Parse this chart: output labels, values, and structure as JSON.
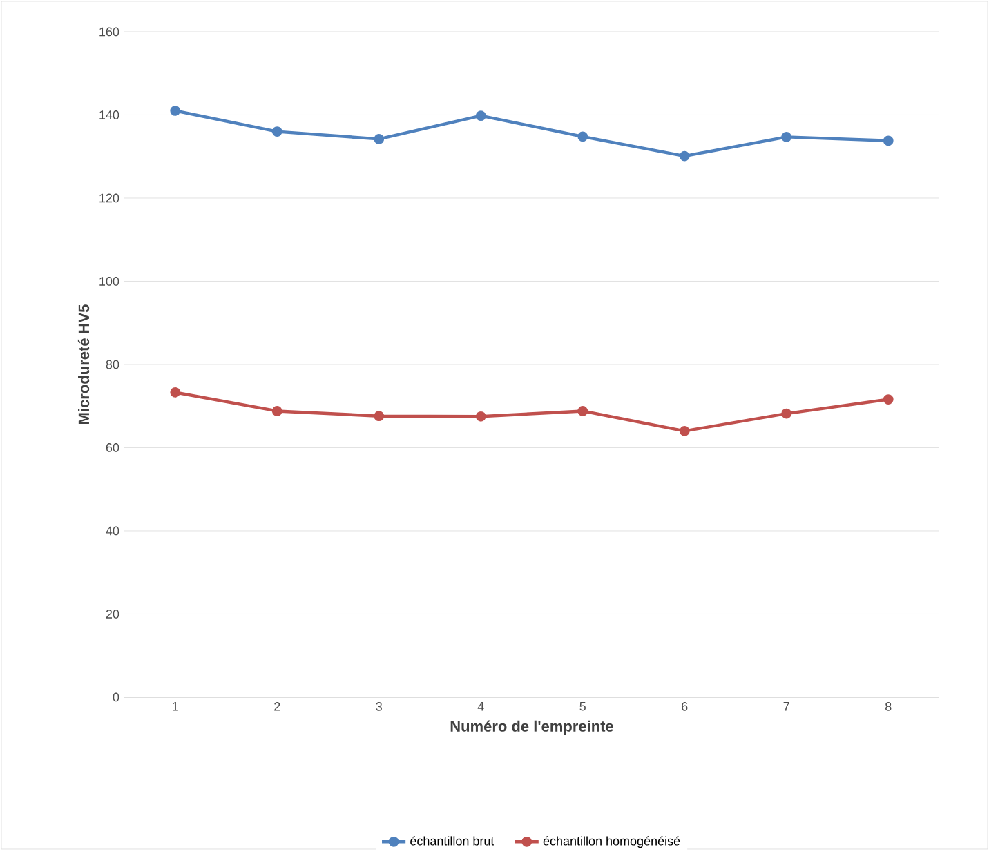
{
  "chart_data": {
    "type": "line",
    "xlabel": "Numéro de l'empreinte",
    "ylabel": "Microdureté HV5",
    "categories": [
      "1",
      "2",
      "3",
      "4",
      "5",
      "6",
      "7",
      "8"
    ],
    "series": [
      {
        "name": "échantillon brut",
        "color": "#4f81bd",
        "values": [
          141,
          136,
          134.2,
          139.8,
          134.8,
          130.1,
          134.7,
          133.8
        ]
      },
      {
        "name": "échantillon homogénéisé",
        "color": "#c0504d",
        "values": [
          73.3,
          68.8,
          67.6,
          67.5,
          68.8,
          64.0,
          68.2,
          71.6
        ]
      }
    ],
    "ylim": [
      0,
      160
    ],
    "yticks": [
      0,
      20,
      40,
      60,
      80,
      100,
      120,
      140,
      160
    ],
    "grid": "y",
    "legend": "bottom",
    "marker": "circle",
    "line_style": "solid"
  }
}
